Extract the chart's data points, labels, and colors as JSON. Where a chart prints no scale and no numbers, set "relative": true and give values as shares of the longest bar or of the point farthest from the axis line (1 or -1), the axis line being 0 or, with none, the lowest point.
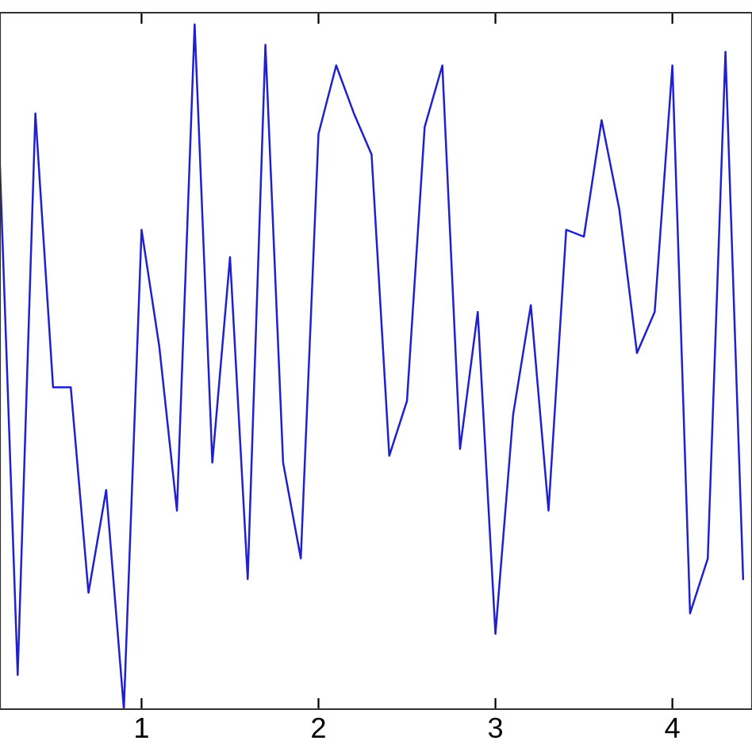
{
  "chart_data": {
    "type": "line",
    "relative": true,
    "x": [
      0.2,
      0.3,
      0.4,
      0.5,
      0.6,
      0.7,
      0.8,
      0.9,
      1.0,
      1.1,
      1.2,
      1.3,
      1.4,
      1.5,
      1.6,
      1.7,
      1.8,
      1.9,
      2.0,
      2.1,
      2.2,
      2.3,
      2.4,
      2.5,
      2.6,
      2.7,
      2.8,
      2.9,
      3.0,
      3.1,
      3.2,
      3.3,
      3.4,
      3.5,
      3.6,
      3.7,
      3.8,
      3.9,
      4.0,
      4.1,
      4.2,
      4.3,
      4.4
    ],
    "series": [
      {
        "color": "#2020d0",
        "values": [
          0.79,
          0.05,
          0.87,
          0.47,
          0.47,
          0.17,
          0.32,
          0,
          0.7,
          0.53,
          0.29,
          1.0,
          0.36,
          0.66,
          0.19,
          0.97,
          0.36,
          0.22,
          0.84,
          0.94,
          0.87,
          0.81,
          0.37,
          0.45,
          0.85,
          0.94,
          0.38,
          0.58,
          0.11,
          0.43,
          0.59,
          0.29,
          0.7,
          0.69,
          0.86,
          0.73,
          0.52,
          0.58,
          0.94,
          0.14,
          0.22,
          0.96,
          0.19
        ]
      }
    ],
    "xlim": [
      0.2,
      4.45
    ],
    "xticks": [
      1,
      2,
      3,
      4
    ],
    "grid": false,
    "legend": false,
    "marker": "none",
    "line_style": "solid"
  }
}
